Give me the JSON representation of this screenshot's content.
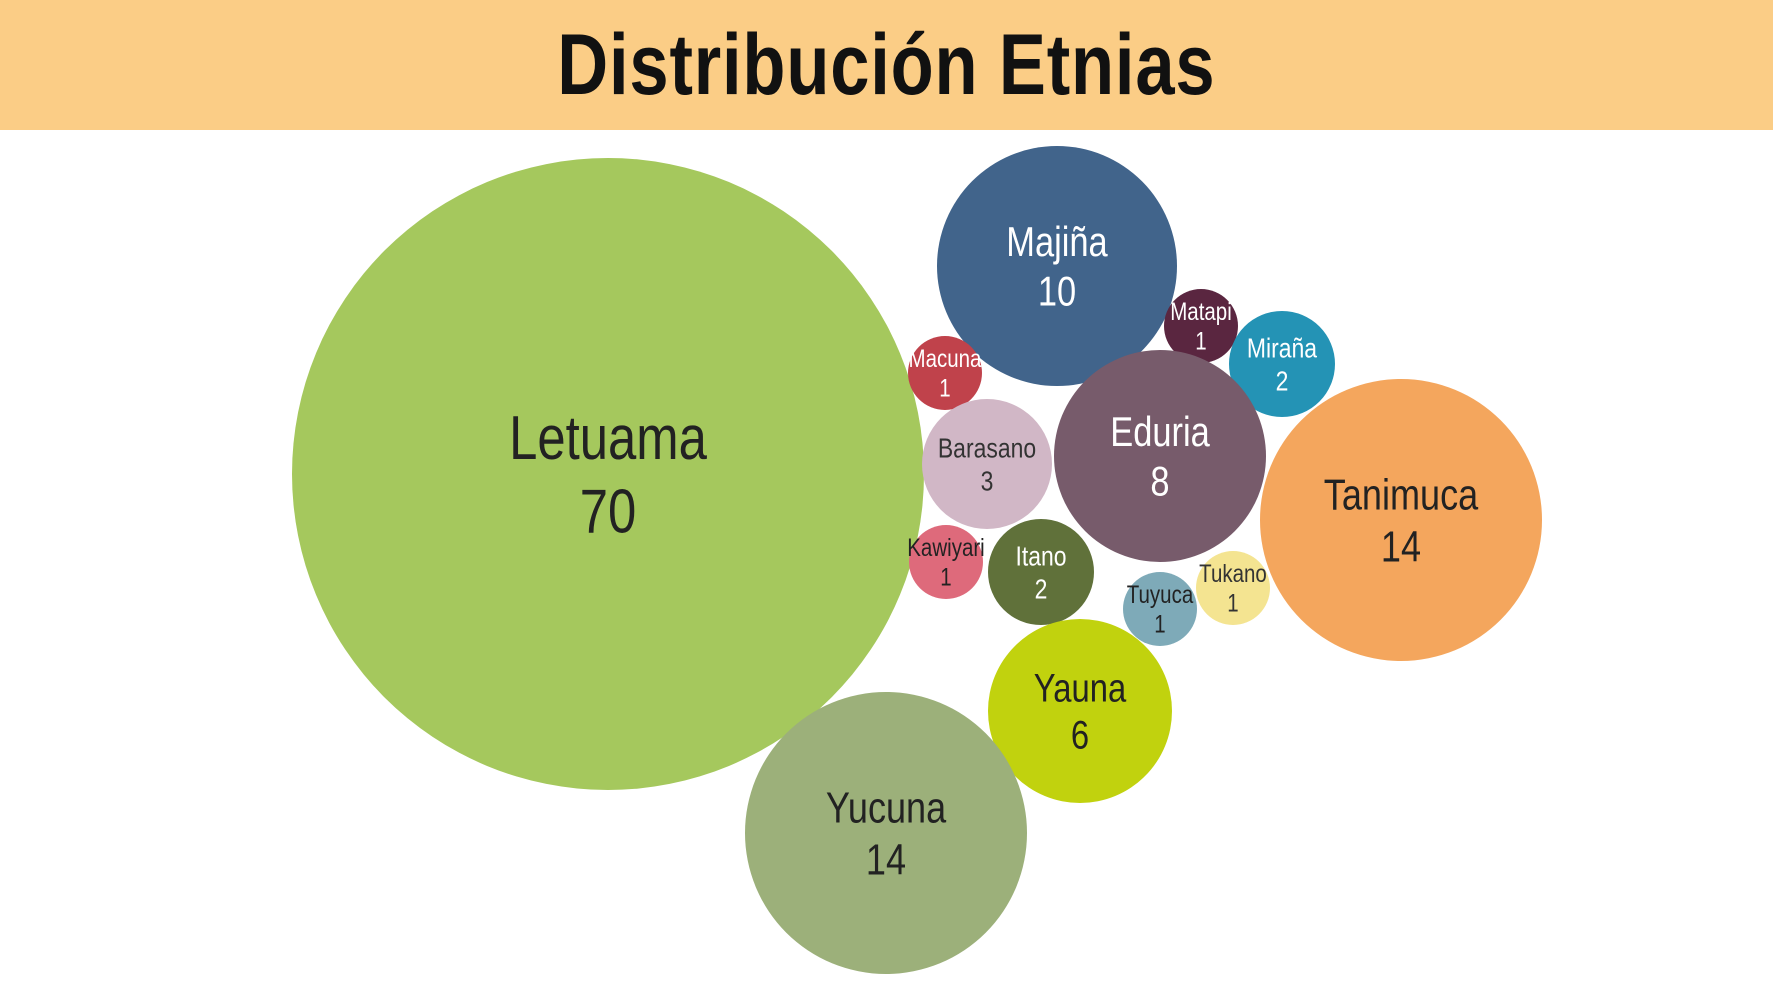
{
  "title": "Distribución Etnias",
  "colors": {
    "title_background": "#FBCD86",
    "background": "#FFFFFF"
  },
  "chart_data": {
    "type": "bubble",
    "title": "Distribución Etnias",
    "series": [
      {
        "name": "Letuama",
        "value": 70,
        "color": "#A5C85D",
        "label_color": "#222222"
      },
      {
        "name": "Majiña",
        "value": 10,
        "color": "#41648B",
        "label_color": "#FFFFFF"
      },
      {
        "name": "Matapi",
        "value": 1,
        "color": "#5A2640",
        "label_color": "#FFFFFF"
      },
      {
        "name": "Macuna",
        "value": 1,
        "color": "#C0424B",
        "label_color": "#FFFFFF"
      },
      {
        "name": "Miraña",
        "value": 2,
        "color": "#2493B5",
        "label_color": "#FFFFFF"
      },
      {
        "name": "Barasano",
        "value": 3,
        "color": "#D1B7C6",
        "label_color": "#333333"
      },
      {
        "name": "Eduria",
        "value": 8,
        "color": "#775B6B",
        "label_color": "#FFFFFF"
      },
      {
        "name": "Tanimuca",
        "value": 14,
        "color": "#F4A65D",
        "label_color": "#222222"
      },
      {
        "name": "Kawiyari",
        "value": 1,
        "color": "#DE6A7B",
        "label_color": "#222222"
      },
      {
        "name": "Itano",
        "value": 2,
        "color": "#60713A",
        "label_color": "#FFFFFF"
      },
      {
        "name": "Tukano",
        "value": 1,
        "color": "#F4E491",
        "label_color": "#333333"
      },
      {
        "name": "Tuyuca",
        "value": 1,
        "color": "#7EAAB8",
        "label_color": "#222222"
      },
      {
        "name": "Yauna",
        "value": 6,
        "color": "#C1D20E",
        "label_color": "#222222"
      },
      {
        "name": "Yucuna",
        "value": 14,
        "color": "#9CB07A",
        "label_color": "#222222"
      }
    ]
  }
}
